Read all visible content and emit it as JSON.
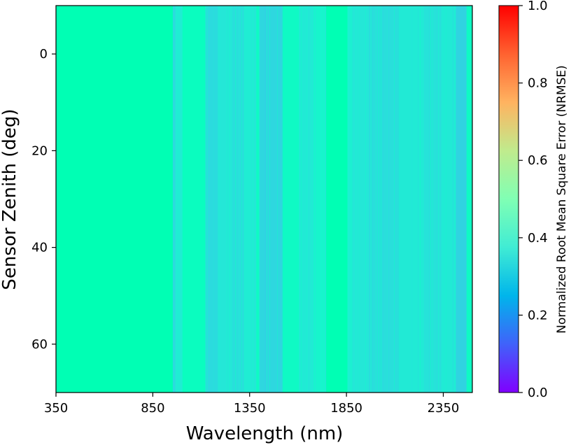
{
  "chart_data": {
    "type": "heatmap",
    "xlabel": "Wavelength (nm)",
    "ylabel": "Sensor Zenith (deg)",
    "xlim": [
      350,
      2500
    ],
    "ylim": [
      -10,
      70
    ],
    "y_inverted": true,
    "xticks": [
      350,
      850,
      1350,
      1850,
      2350
    ],
    "yticks": [
      0,
      20,
      40,
      60
    ],
    "colorbar": {
      "label": "Normalized Root Mean Square Error (NRMSE)",
      "range": [
        0.0,
        1.0
      ],
      "ticks": [
        "0.0",
        "0.2",
        "0.4",
        "0.6",
        "0.8",
        "1.0"
      ],
      "colormap": "rainbow"
    },
    "note": "NRMSE varies with wavelength only; constant across sensor zenith",
    "bands": [
      {
        "x0": 350,
        "x1": 953,
        "nrmse": 0.5
      },
      {
        "x0": 953,
        "x1": 967,
        "nrmse": 0.33
      },
      {
        "x0": 967,
        "x1": 1003,
        "nrmse": 0.38
      },
      {
        "x0": 1003,
        "x1": 1120,
        "nrmse": 0.46
      },
      {
        "x0": 1120,
        "x1": 1185,
        "nrmse": 0.33
      },
      {
        "x0": 1185,
        "x1": 1260,
        "nrmse": 0.36
      },
      {
        "x0": 1260,
        "x1": 1320,
        "nrmse": 0.34
      },
      {
        "x0": 1320,
        "x1": 1385,
        "nrmse": 0.38
      },
      {
        "x0": 1385,
        "x1": 1400,
        "nrmse": 0.44
      },
      {
        "x0": 1400,
        "x1": 1520,
        "nrmse": 0.32
      },
      {
        "x0": 1520,
        "x1": 1605,
        "nrmse": 0.44
      },
      {
        "x0": 1605,
        "x1": 1680,
        "nrmse": 0.37
      },
      {
        "x0": 1680,
        "x1": 1745,
        "nrmse": 0.41
      },
      {
        "x0": 1745,
        "x1": 1855,
        "nrmse": 0.5
      },
      {
        "x0": 1855,
        "x1": 1880,
        "nrmse": 0.39
      },
      {
        "x0": 1880,
        "x1": 1980,
        "nrmse": 0.36
      },
      {
        "x0": 1980,
        "x1": 2120,
        "nrmse": 0.34
      },
      {
        "x0": 2120,
        "x1": 2250,
        "nrmse": 0.37
      },
      {
        "x0": 2250,
        "x1": 2340,
        "nrmse": 0.35
      },
      {
        "x0": 2340,
        "x1": 2415,
        "nrmse": 0.37
      },
      {
        "x0": 2415,
        "x1": 2470,
        "nrmse": 0.31
      },
      {
        "x0": 2470,
        "x1": 2500,
        "nrmse": 0.44
      }
    ]
  }
}
